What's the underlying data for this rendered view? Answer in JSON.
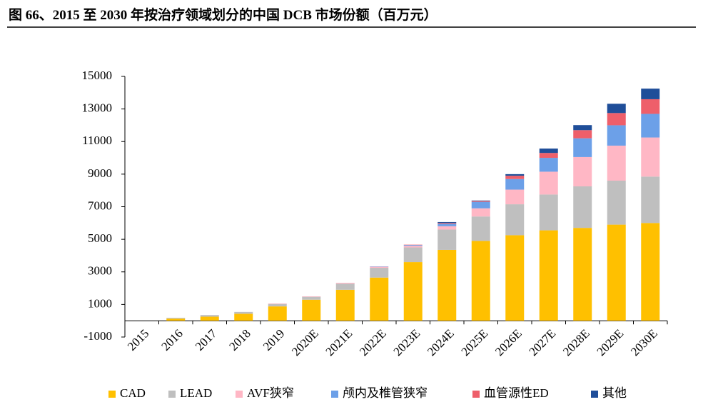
{
  "chart_data": {
    "type": "stacked_bar",
    "title": "图 66、2015 至 2030 年按治疗领域划分的中国 DCB 市场份额（百万元）",
    "categories": [
      "2015",
      "2016",
      "2017",
      "2018",
      "2019",
      "2020E",
      "2021E",
      "2022E",
      "2023E",
      "2024E",
      "2025E",
      "2026E",
      "2027E",
      "2028E",
      "2029E",
      "2030E"
    ],
    "series": [
      {
        "name": "CAD",
        "color": "#FFC000",
        "values": [
          0,
          130,
          250,
          430,
          880,
          1290,
          1900,
          2650,
          3600,
          4350,
          4900,
          5250,
          5550,
          5700,
          5900,
          6000
        ]
      },
      {
        "name": "LEAD",
        "color": "#BFBFBF",
        "values": [
          0,
          50,
          100,
          110,
          150,
          180,
          380,
          600,
          900,
          1250,
          1500,
          1900,
          2200,
          2550,
          2700,
          2850
        ]
      },
      {
        "name": "AVF狭窄",
        "color": "#FFB7C5",
        "values": [
          0,
          0,
          0,
          0,
          30,
          30,
          50,
          70,
          100,
          200,
          500,
          900,
          1400,
          1800,
          2150,
          2400
        ]
      },
      {
        "name": "颅内及椎管狭窄",
        "color": "#6CA0E8",
        "values": [
          0,
          0,
          0,
          0,
          0,
          0,
          0,
          20,
          50,
          150,
          400,
          650,
          850,
          1150,
          1250,
          1450
        ]
      },
      {
        "name": "血管源性ED",
        "color": "#EE5F6A",
        "values": [
          0,
          0,
          0,
          0,
          0,
          0,
          0,
          0,
          20,
          50,
          50,
          200,
          300,
          500,
          750,
          900
        ]
      },
      {
        "name": "其他",
        "color": "#1F4E99",
        "values": [
          0,
          0,
          0,
          0,
          0,
          0,
          0,
          0,
          0,
          60,
          30,
          100,
          270,
          310,
          570,
          650
        ]
      }
    ],
    "ylim": [
      -1000,
      15000
    ],
    "yticks": [
      -1000,
      1000,
      3000,
      5000,
      7000,
      9000,
      11000,
      13000,
      15000
    ],
    "legend": "bottom"
  }
}
